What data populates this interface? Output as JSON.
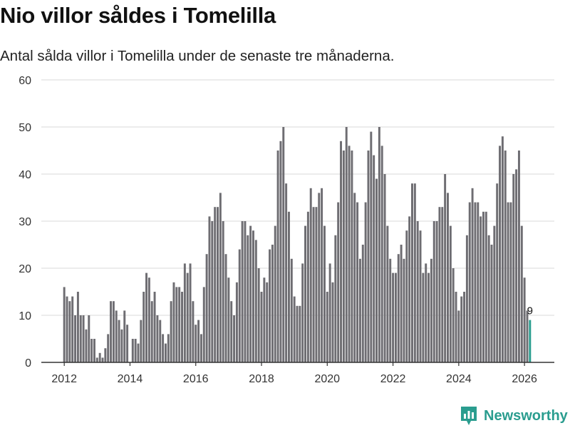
{
  "header": {
    "title": "Nio villor såldes i Tomelilla",
    "subtitle": "Antal sålda villor i Tomelilla under de senaste tre månaderna."
  },
  "brand": {
    "name": "Newsworthy",
    "icon": "newsworthy-logo-icon"
  },
  "colors": {
    "bar": "#6e6d72",
    "highlight": "#2a9d8f",
    "grid": "#d9d9d9",
    "axis": "#333333"
  },
  "chart_data": {
    "type": "bar",
    "title": "Nio villor såldes i Tomelilla",
    "xlabel": "",
    "ylabel": "",
    "ylim": [
      0,
      60
    ],
    "yticks": [
      0,
      10,
      20,
      30,
      40,
      50,
      60
    ],
    "xticks": [
      "2012",
      "2014",
      "2016",
      "2018",
      "2020",
      "2022",
      "2024",
      "2026"
    ],
    "grid": true,
    "start": "2012-01",
    "frequency": "monthly",
    "highlight_label": "9",
    "values": [
      16,
      14,
      13,
      14,
      10,
      15,
      10,
      10,
      7,
      10,
      5,
      5,
      1,
      2,
      1,
      3,
      6,
      13,
      13,
      11,
      9,
      7,
      11,
      8,
      0,
      5,
      5,
      4,
      9,
      15,
      19,
      18,
      13,
      15,
      10,
      9,
      6,
      4,
      6,
      13,
      17,
      16,
      16,
      15,
      21,
      19,
      21,
      13,
      8,
      9,
      6,
      16,
      23,
      31,
      30,
      33,
      33,
      36,
      30,
      23,
      18,
      13,
      10,
      17,
      24,
      30,
      30,
      27,
      29,
      28,
      26,
      20,
      15,
      18,
      17,
      24,
      25,
      29,
      45,
      47,
      50,
      38,
      32,
      22,
      14,
      12,
      12,
      21,
      29,
      32,
      37,
      33,
      33,
      36,
      37,
      29,
      15,
      21,
      17,
      27,
      34,
      47,
      45,
      50,
      46,
      45,
      36,
      34,
      22,
      25,
      34,
      45,
      49,
      44,
      39,
      50,
      46,
      40,
      29,
      22,
      19,
      19,
      23,
      25,
      22,
      28,
      31,
      38,
      38,
      30,
      28,
      19,
      21,
      19,
      22,
      30,
      30,
      33,
      33,
      40,
      36,
      29,
      20,
      15,
      11,
      14,
      15,
      27,
      34,
      37,
      34,
      34,
      31,
      32,
      32,
      27,
      25,
      29,
      38,
      46,
      48,
      45,
      34,
      34,
      40,
      41,
      45,
      29,
      18,
      11,
      9
    ]
  }
}
